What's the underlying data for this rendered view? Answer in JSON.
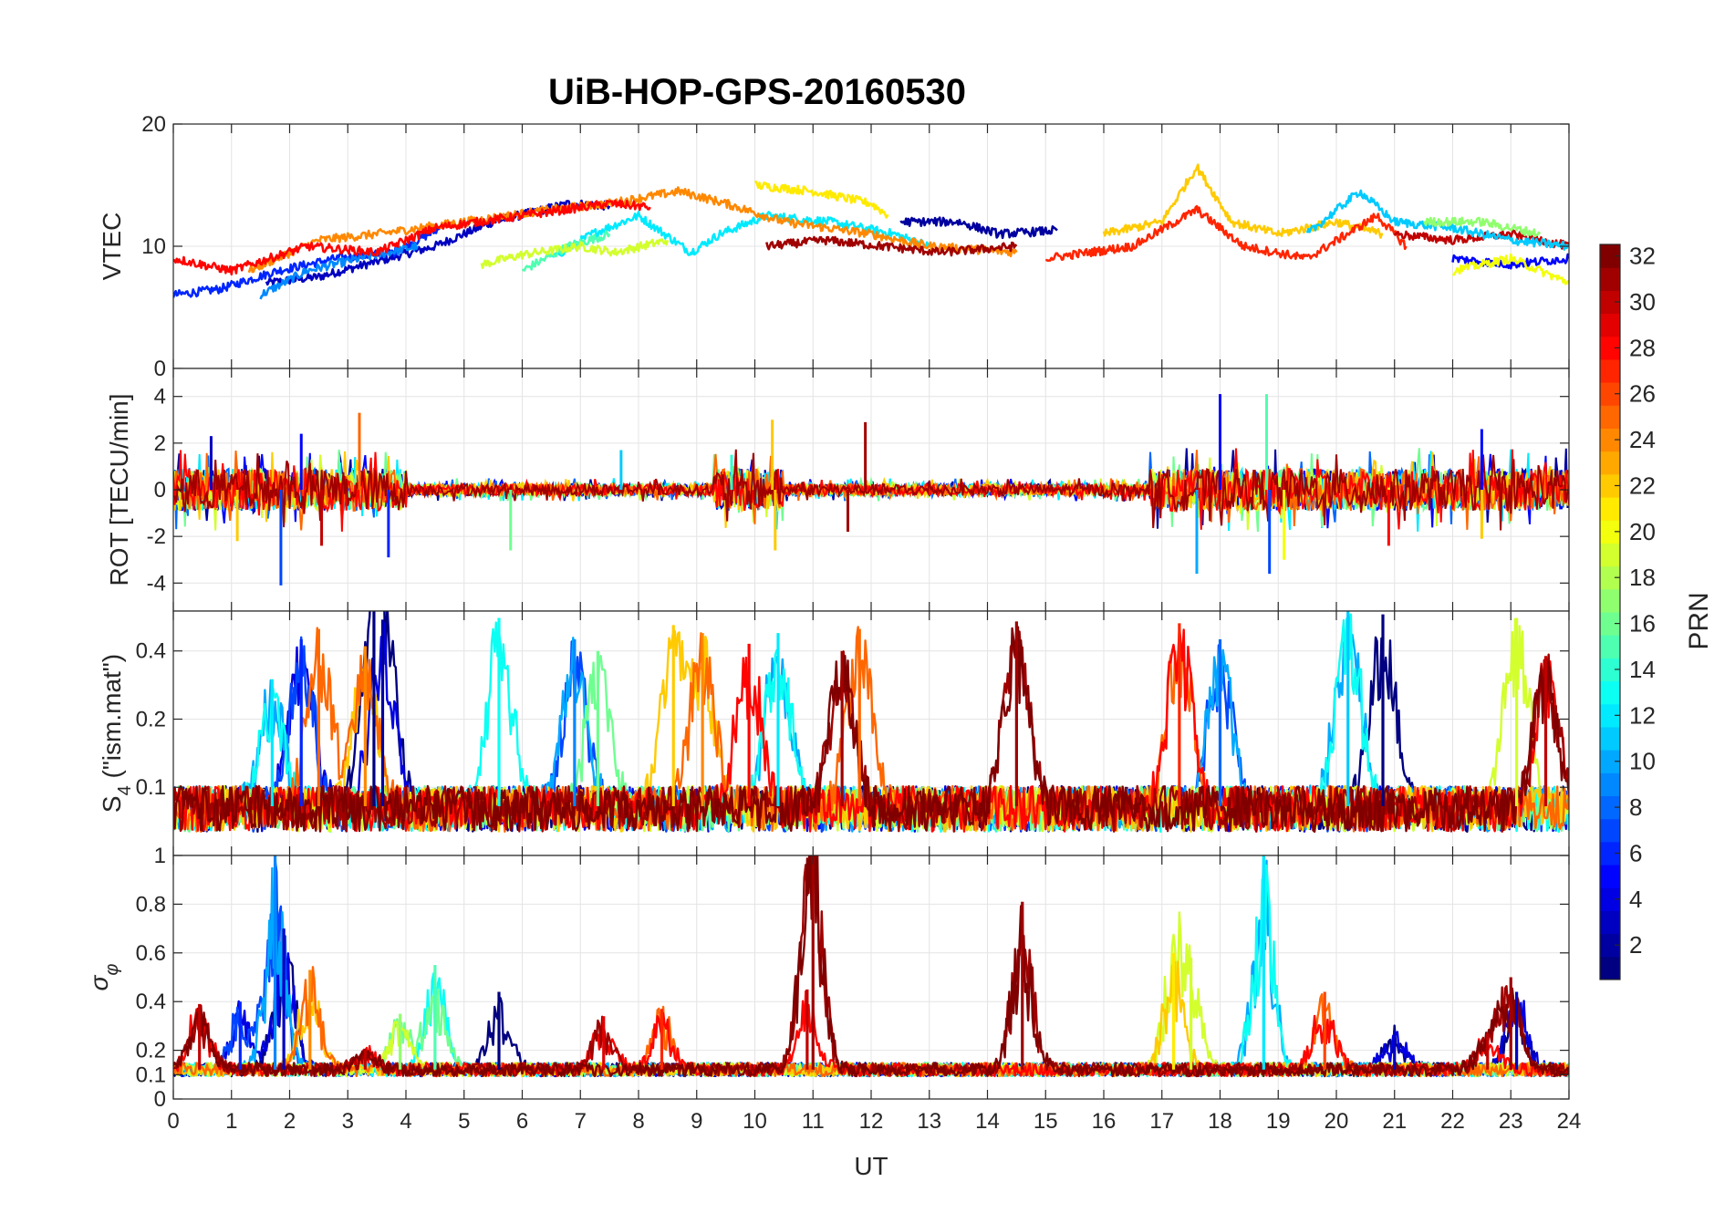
{
  "chart_data": {
    "type": "line",
    "title": "UiB-HOP-GPS-20160530",
    "x_axis": {
      "label": "UT",
      "range": [
        0,
        24
      ],
      "ticks": [
        0,
        1,
        2,
        3,
        4,
        5,
        6,
        7,
        8,
        9,
        10,
        11,
        12,
        13,
        14,
        15,
        16,
        17,
        18,
        19,
        20,
        21,
        22,
        23,
        24
      ]
    },
    "grid": true,
    "colorbar": {
      "label": "PRN",
      "range": [
        1,
        32
      ],
      "ticks": [
        2,
        4,
        6,
        8,
        10,
        12,
        14,
        16,
        18,
        20,
        22,
        24,
        26,
        28,
        30,
        32
      ],
      "colormap": "jet",
      "placement": "right"
    },
    "panels": [
      {
        "name": "vtec",
        "ylabel": "VTEC",
        "ylim": [
          0,
          20
        ],
        "yticks": [
          0,
          10,
          20
        ],
        "series": [
          {
            "prn": 3,
            "points": [
              [
                1.6,
                7
              ],
              [
                2.5,
                7.5
              ],
              [
                3.3,
                8.5
              ],
              [
                4.5,
                10
              ],
              [
                5.5,
                12
              ],
              [
                6.8,
                13.5
              ],
              [
                7.5,
                13.3
              ]
            ]
          },
          {
            "prn": 6,
            "points": [
              [
                0,
                6
              ],
              [
                0.8,
                6.5
              ],
              [
                1.8,
                8
              ],
              [
                2.8,
                9
              ],
              [
                3.8,
                9.5
              ],
              [
                4.6,
                11.5
              ]
            ]
          },
          {
            "prn": 9,
            "points": [
              [
                1.5,
                6
              ],
              [
                2.3,
                8
              ],
              [
                3.2,
                9
              ],
              [
                4.2,
                10
              ]
            ]
          },
          {
            "prn": 12,
            "points": [
              [
                6.5,
                9
              ],
              [
                7.2,
                11
              ],
              [
                8,
                12.5
              ],
              [
                8.9,
                9.5
              ],
              [
                9.4,
                11
              ],
              [
                10.2,
                12.5
              ],
              [
                11.3,
                12
              ],
              [
                12.4,
                11
              ],
              [
                13,
                10
              ]
            ]
          },
          {
            "prn": 15,
            "points": [
              [
                6,
                8
              ],
              [
                6.8,
                10
              ],
              [
                7.5,
                11
              ]
            ]
          },
          {
            "prn": 19,
            "points": [
              [
                5.3,
                8.5
              ],
              [
                6,
                9.3
              ],
              [
                7,
                10
              ],
              [
                7.6,
                9.5
              ],
              [
                8.5,
                10.5
              ]
            ]
          },
          {
            "prn": 21,
            "points": [
              [
                10,
                15
              ],
              [
                11,
                14.5
              ],
              [
                12,
                13.5
              ],
              [
                12.3,
                12.5
              ]
            ]
          },
          {
            "prn": 24,
            "points": [
              [
                1.3,
                8
              ],
              [
                2.5,
                10.5
              ],
              [
                3.5,
                11
              ],
              [
                5,
                12
              ],
              [
                6.5,
                13
              ],
              [
                7.5,
                13.5
              ],
              [
                8.7,
                14.5
              ],
              [
                9.5,
                13.5
              ],
              [
                10.5,
                12
              ],
              [
                12,
                11
              ],
              [
                13,
                10
              ],
              [
                14.5,
                9.5
              ]
            ]
          },
          {
            "prn": 28,
            "points": [
              [
                0,
                9
              ],
              [
                1,
                8
              ],
              [
                2.3,
                10
              ],
              [
                3.5,
                9.5
              ],
              [
                4.5,
                11.5
              ],
              [
                6,
                12.5
              ],
              [
                7.5,
                13.5
              ],
              [
                8.2,
                13.2
              ]
            ]
          },
          {
            "prn": 31,
            "points": [
              [
                10.2,
                10
              ],
              [
                11.2,
                10.5
              ],
              [
                12.2,
                10
              ],
              [
                13.2,
                9.5
              ],
              [
                14.5,
                10
              ]
            ]
          },
          {
            "prn": 2,
            "points": [
              [
                12.5,
                12
              ],
              [
                13.5,
                12
              ],
              [
                14.2,
                11
              ],
              [
                15.2,
                11.3
              ]
            ]
          },
          {
            "prn": 22,
            "points": [
              [
                16,
                11
              ],
              [
                17,
                12
              ],
              [
                17.6,
                16.5
              ],
              [
                18.2,
                12
              ],
              [
                19,
                11
              ],
              [
                20,
                12
              ],
              [
                20.8,
                11
              ]
            ]
          },
          {
            "prn": 27,
            "points": [
              [
                15,
                9
              ],
              [
                16.5,
                10
              ],
              [
                17.6,
                13
              ],
              [
                18.4,
                10
              ],
              [
                19.5,
                9
              ],
              [
                20.7,
                12.5
              ],
              [
                21.2,
                10
              ]
            ]
          },
          {
            "prn": 30,
            "points": [
              [
                21,
                11
              ],
              [
                22,
                10.5
              ],
              [
                23,
                11
              ],
              [
                24,
                10
              ]
            ]
          },
          {
            "prn": 11,
            "points": [
              [
                19.5,
                11
              ],
              [
                20.4,
                14.5
              ],
              [
                21,
                12
              ],
              [
                22,
                11.5
              ],
              [
                23,
                10.5
              ],
              [
                24,
                10
              ]
            ]
          },
          {
            "prn": 17,
            "points": [
              [
                21.5,
                12
              ],
              [
                22.5,
                12
              ],
              [
                23.5,
                11
              ]
            ]
          },
          {
            "prn": 5,
            "points": [
              [
                22,
                9
              ],
              [
                23,
                8.5
              ],
              [
                24,
                9
              ]
            ]
          },
          {
            "prn": 20,
            "points": [
              [
                22,
                8
              ],
              [
                23,
                9
              ],
              [
                24,
                7
              ]
            ]
          }
        ]
      },
      {
        "name": "rot",
        "ylabel": "ROT [TECU/min]",
        "ylim": [
          -5.2,
          5.2
        ],
        "yticks": [
          -4,
          -2,
          0,
          2,
          4
        ],
        "spikes": [
          {
            "t": 0.65,
            "v": 2.3,
            "prn": 3
          },
          {
            "t": 1.1,
            "v": -2.2,
            "prn": 22
          },
          {
            "t": 1.85,
            "v": -4.1,
            "prn": 7
          },
          {
            "t": 2.2,
            "v": 2.4,
            "prn": 5
          },
          {
            "t": 2.55,
            "v": -2.4,
            "prn": 30
          },
          {
            "t": 3.2,
            "v": 3.3,
            "prn": 25
          },
          {
            "t": 3.7,
            "v": -2.9,
            "prn": 6
          },
          {
            "t": 5.8,
            "v": -2.6,
            "prn": 16
          },
          {
            "t": 7.7,
            "v": 1.7,
            "prn": 11
          },
          {
            "t": 9.6,
            "v": 1.5,
            "prn": 14
          },
          {
            "t": 10.3,
            "v": 3.0,
            "prn": 22
          },
          {
            "t": 10.35,
            "v": -2.6,
            "prn": 22
          },
          {
            "t": 11.9,
            "v": 2.9,
            "prn": 31
          },
          {
            "t": 11.6,
            "v": -1.8,
            "prn": 31
          },
          {
            "t": 17.6,
            "v": -3.6,
            "prn": 10
          },
          {
            "t": 18.0,
            "v": 4.1,
            "prn": 5
          },
          {
            "t": 18.8,
            "v": 4.1,
            "prn": 15
          },
          {
            "t": 18.85,
            "v": -3.6,
            "prn": 7
          },
          {
            "t": 19.1,
            "v": -3.0,
            "prn": 20
          },
          {
            "t": 20.9,
            "v": -2.4,
            "prn": 28
          },
          {
            "t": 22.5,
            "v": 2.6,
            "prn": 5
          },
          {
            "t": 22.5,
            "v": -2.1,
            "prn": 22
          }
        ]
      },
      {
        "name": "s4",
        "ylabel": "S_4 (\"ism.mat\")",
        "ylabel_main": "S",
        "ylabel_sub": "4",
        "ylabel_rest": " (\"ism.mat\")",
        "ylim": [
          0.05,
          0.6
        ],
        "yticks": [
          0.1,
          0.2,
          0.4
        ],
        "scale": "log",
        "peaks": [
          {
            "t": 1.7,
            "v": 0.3,
            "prn": 12
          },
          {
            "t": 2.2,
            "v": 0.45,
            "prn": 6
          },
          {
            "t": 2.5,
            "v": 0.5,
            "prn": 25
          },
          {
            "t": 3.3,
            "v": 0.42,
            "prn": 24
          },
          {
            "t": 3.45,
            "v": 0.6,
            "prn": 1
          },
          {
            "t": 3.6,
            "v": 0.55,
            "prn": 2
          },
          {
            "t": 5.6,
            "v": 0.56,
            "prn": 13
          },
          {
            "t": 6.9,
            "v": 0.45,
            "prn": 9
          },
          {
            "t": 7.3,
            "v": 0.4,
            "prn": 16
          },
          {
            "t": 8.6,
            "v": 0.52,
            "prn": 22
          },
          {
            "t": 9.1,
            "v": 0.48,
            "prn": 24
          },
          {
            "t": 9.9,
            "v": 0.43,
            "prn": 28
          },
          {
            "t": 10.4,
            "v": 0.48,
            "prn": 12
          },
          {
            "t": 11.8,
            "v": 0.5,
            "prn": 25
          },
          {
            "t": 11.5,
            "v": 0.4,
            "prn": 31
          },
          {
            "t": 14.5,
            "v": 0.54,
            "prn": 31
          },
          {
            "t": 17.3,
            "v": 0.53,
            "prn": 27
          },
          {
            "t": 18.0,
            "v": 0.45,
            "prn": 8
          },
          {
            "t": 20.2,
            "v": 0.6,
            "prn": 11
          },
          {
            "t": 20.8,
            "v": 0.58,
            "prn": 1
          },
          {
            "t": 23.1,
            "v": 0.56,
            "prn": 19
          },
          {
            "t": 23.6,
            "v": 0.38,
            "prn": 30
          }
        ]
      },
      {
        "name": "sigma_phi",
        "ylabel": "σ_φ",
        "ylabel_main": "σ",
        "ylabel_sub": "φ",
        "ylim": [
          0,
          1
        ],
        "yticks": [
          0,
          0.1,
          0.2,
          0.4,
          0.6,
          0.8,
          1
        ],
        "peaks": [
          {
            "t": 0.45,
            "v": 0.39,
            "prn": 30
          },
          {
            "t": 1.15,
            "v": 0.4,
            "prn": 6
          },
          {
            "t": 1.75,
            "v": 1.0,
            "prn": 9
          },
          {
            "t": 1.9,
            "v": 0.7,
            "prn": 3
          },
          {
            "t": 2.35,
            "v": 0.53,
            "prn": 24
          },
          {
            "t": 3.3,
            "v": 0.2,
            "prn": 30
          },
          {
            "t": 3.9,
            "v": 0.35,
            "prn": 17
          },
          {
            "t": 4.5,
            "v": 0.55,
            "prn": 15
          },
          {
            "t": 5.6,
            "v": 0.44,
            "prn": 1
          },
          {
            "t": 7.4,
            "v": 0.34,
            "prn": 29
          },
          {
            "t": 8.4,
            "v": 0.37,
            "prn": 27
          },
          {
            "t": 10.9,
            "v": 0.45,
            "prn": 30
          },
          {
            "t": 11.0,
            "v": 1.0,
            "prn": 31
          },
          {
            "t": 14.6,
            "v": 0.81,
            "prn": 31
          },
          {
            "t": 17.2,
            "v": 0.6,
            "prn": 21
          },
          {
            "t": 17.5,
            "v": 0.58,
            "prn": 19
          },
          {
            "t": 18.75,
            "v": 1.0,
            "prn": 12
          },
          {
            "t": 19.8,
            "v": 0.44,
            "prn": 26
          },
          {
            "t": 21.0,
            "v": 0.28,
            "prn": 3
          },
          {
            "t": 22.6,
            "v": 0.27,
            "prn": 30
          },
          {
            "t": 23.0,
            "v": 0.5,
            "prn": 31
          },
          {
            "t": 23.1,
            "v": 0.44,
            "prn": 3
          }
        ]
      }
    ]
  }
}
